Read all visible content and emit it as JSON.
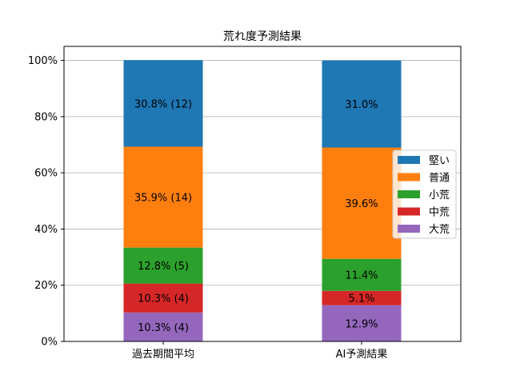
{
  "chart_data": {
    "type": "bar",
    "stacked": true,
    "title": "荒れ度予測結果",
    "xlabel": "",
    "ylabel": "",
    "categories": [
      "過去期間平均",
      "AI予測結果"
    ],
    "ylim": [
      0,
      105
    ],
    "yticks": [
      0,
      20,
      40,
      60,
      80,
      100
    ],
    "ytick_labels": [
      "0%",
      "20%",
      "40%",
      "60%",
      "80%",
      "100%"
    ],
    "grid": "horizontal",
    "legend_position": "center-right",
    "series": [
      {
        "name": "大荒",
        "color": "#9467bd",
        "values": [
          10.3,
          12.9
        ],
        "labels": [
          "10.3% (4)",
          "12.9%"
        ]
      },
      {
        "name": "中荒",
        "color": "#d62728",
        "values": [
          10.3,
          5.1
        ],
        "labels": [
          "10.3% (4)",
          "5.1%"
        ]
      },
      {
        "name": "小荒",
        "color": "#2ca02c",
        "values": [
          12.8,
          11.4
        ],
        "labels": [
          "12.8% (5)",
          "11.4%"
        ]
      },
      {
        "name": "普通",
        "color": "#ff7f0e",
        "values": [
          35.9,
          39.6
        ],
        "labels": [
          "35.9% (14)",
          "39.6%"
        ]
      },
      {
        "name": "堅い",
        "color": "#1f77b4",
        "values": [
          30.8,
          31.0
        ],
        "labels": [
          "30.8% (12)",
          "31.0%"
        ]
      }
    ],
    "legend_order": [
      "堅い",
      "普通",
      "小荒",
      "中荒",
      "大荒"
    ]
  }
}
